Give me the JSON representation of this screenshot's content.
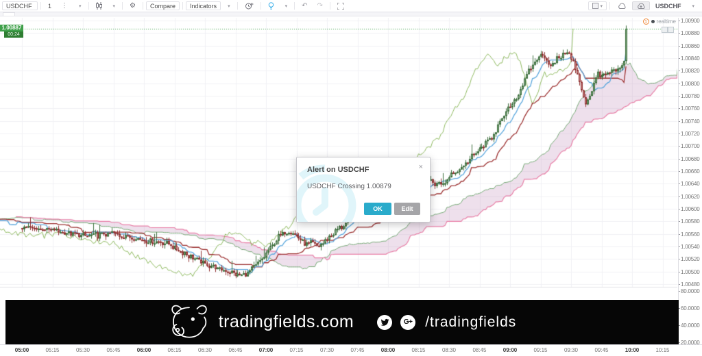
{
  "toolbar": {
    "symbol": "USDCHF",
    "interval": "1",
    "compare": "Compare",
    "indicators": "Indicators",
    "right_symbol": "USDCHF"
  },
  "status": {
    "notification_count": "1",
    "realtime": "realtime"
  },
  "price_axis": {
    "current": "1.00887",
    "countdown": "00:24",
    "ticks": [
      "1.00900",
      "1.00880",
      "1.00860",
      "1.00840",
      "1.00820",
      "1.00800",
      "1.00780",
      "1.00760",
      "1.00740",
      "1.00720",
      "1.00700",
      "1.00680",
      "1.00660",
      "1.00640",
      "1.00620",
      "1.00600",
      "1.00580",
      "1.00560",
      "1.00540",
      "1.00520",
      "1.00500",
      "1.00480"
    ],
    "indicator_ticks": [
      "80.0000",
      "60.0000",
      "40.0000",
      "20.0000"
    ]
  },
  "time_axis": {
    "ticks": [
      "05:00",
      "05:15",
      "05:30",
      "05:45",
      "06:00",
      "06:15",
      "06:30",
      "06:45",
      "07:00",
      "07:15",
      "07:30",
      "07:45",
      "08:00",
      "08:15",
      "08:30",
      "08:45",
      "09:00",
      "09:15",
      "09:30",
      "09:45",
      "10:00",
      "10:15"
    ],
    "bold_indices": [
      0,
      4,
      8,
      12,
      16,
      20
    ]
  },
  "alert_dialog": {
    "title": "Alert on USDCHF",
    "message": "USDCHF Crossing 1.00879",
    "ok": "OK",
    "edit": "Edit",
    "close": "×"
  },
  "banner": {
    "site": "tradingfields.com",
    "handle": "/tradingfields"
  },
  "chart_data": {
    "type": "candlestick",
    "symbol": "USDCHF",
    "interval": "1 minute",
    "overlay": "Ichimoku Cloud (tenkan 9, kijun 26, senkou 52, displacement 26)",
    "x_start": "05:00",
    "x_end": "10:15",
    "last_candle_time": "09:57",
    "last_price": 1.00887,
    "alert_level": 1.00879,
    "ylim": [
      1.0048,
      1.009
    ],
    "lower_pane_scale": [
      20,
      40,
      60,
      80
    ],
    "price_path_minutes_price": [
      [
        -80,
        1.0059
      ],
      [
        -40,
        1.00582
      ],
      [
        0,
        1.00572
      ],
      [
        15,
        1.00566
      ],
      [
        30,
        1.00556
      ],
      [
        45,
        1.00561
      ],
      [
        60,
        1.00551
      ],
      [
        72,
        1.00544
      ],
      [
        82,
        1.00526
      ],
      [
        92,
        1.00509
      ],
      [
        102,
        1.005
      ],
      [
        108,
        1.00493
      ],
      [
        113,
        1.00503
      ],
      [
        119,
        1.00524
      ],
      [
        126,
        1.00556
      ],
      [
        131,
        1.00567
      ],
      [
        138,
        1.00547
      ],
      [
        146,
        1.00541
      ],
      [
        154,
        1.00563
      ],
      [
        162,
        1.00586
      ],
      [
        170,
        1.00606
      ],
      [
        177,
        1.00596
      ],
      [
        184,
        1.00613
      ],
      [
        192,
        1.00626
      ],
      [
        200,
        1.00645
      ],
      [
        206,
        1.00637
      ],
      [
        213,
        1.00659
      ],
      [
        220,
        1.00679
      ],
      [
        226,
        1.00699
      ],
      [
        231,
        1.00714
      ],
      [
        236,
        1.00742
      ],
      [
        240,
        1.00764
      ],
      [
        244,
        1.00784
      ],
      [
        248,
        1.00812
      ],
      [
        252,
        1.00834
      ],
      [
        256,
        1.00849
      ],
      [
        260,
        1.00827
      ],
      [
        264,
        1.00843
      ],
      [
        268,
        1.0085
      ],
      [
        271,
        1.00832
      ],
      [
        274,
        1.008
      ],
      [
        277,
        1.00768
      ],
      [
        280,
        1.00788
      ],
      [
        283,
        1.00818
      ],
      [
        286,
        1.0081
      ],
      [
        290,
        1.00818
      ],
      [
        294,
        1.00822
      ],
      [
        296,
        1.00834
      ],
      [
        297,
        1.00887
      ]
    ],
    "colors": {
      "up_fill": "#84ab84",
      "up_border": "#3c6e3c",
      "down_fill": "#c67f7f",
      "down_border": "#8f3131",
      "tenkan": "#58a6dd",
      "kijun": "#9c3030",
      "chikou": "#8cb85c",
      "senkou_a": "#74a874",
      "senkou_b": "#e87ea6",
      "cloud_fill": "rgba(186,130,180,0.25)",
      "last_price_line": "#3fa04a",
      "grid": "#f0f0f5"
    }
  }
}
